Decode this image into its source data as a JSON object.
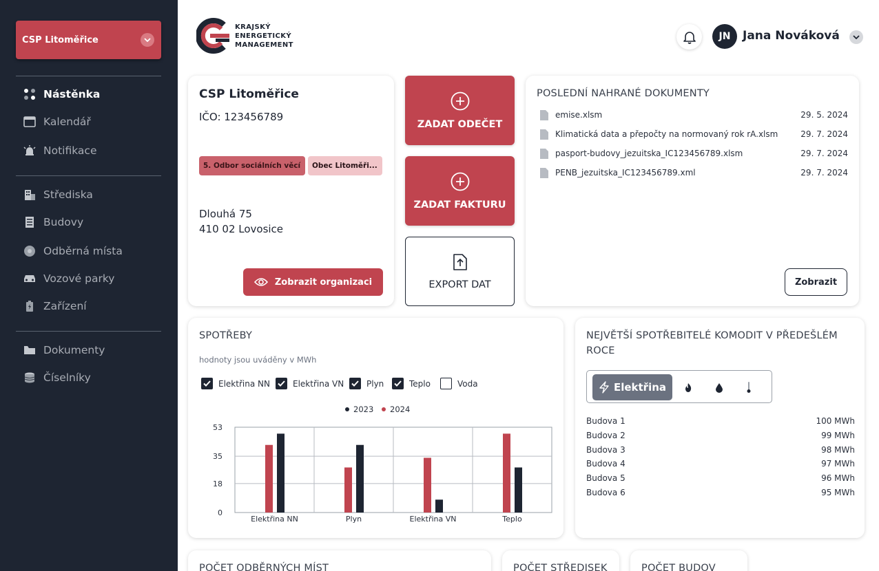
{
  "sidebar": {
    "org_selector": "CSP Litoměřice",
    "items": [
      {
        "label": "Nástěnka"
      },
      {
        "label": "Kalendář"
      },
      {
        "label": "Notifikace"
      },
      {
        "label": "Střediska"
      },
      {
        "label": "Budovy"
      },
      {
        "label": "Odběrná místa"
      },
      {
        "label": "Vozové parky"
      },
      {
        "label": "Zařízení"
      },
      {
        "label": "Dokumenty"
      },
      {
        "label": "Číselníky"
      }
    ]
  },
  "header": {
    "logo_lines": [
      "KRAJSKÝ",
      "ENERGETICKÝ",
      "MANAGEMENT"
    ],
    "avatar_initials": "JN",
    "user_name": "Jana Nováková"
  },
  "org_card": {
    "name": "CSP Litoměřice",
    "ico": "IČO: 123456789",
    "tags": [
      "5. Odbor sociálních věcí",
      "Obec Litoměři..."
    ],
    "address_line1": "Dlouhá 75",
    "address_line2": "410 02 Lovosice",
    "button_label": "Zobrazit organizaci"
  },
  "actions": {
    "reading": "ZADAT ODEČET",
    "invoice": "ZADAT FAKTURU",
    "export": "EXPORT DAT"
  },
  "documents": {
    "title": "POSLEDNÍ NAHRANÉ DOKUMENTY",
    "items": [
      {
        "name": "emise.xlsm",
        "date": "29. 5. 2024"
      },
      {
        "name": "Klimatická data a přepočty na normovaný rok rA.xlsm",
        "date": "29. 7. 2024"
      },
      {
        "name": "pasport-budovy_jezuitska_IC123456789.xlsm",
        "date": "29. 7. 2024"
      },
      {
        "name": "PENB_jezuitska_IC123456789.xml",
        "date": "29. 7. 2024"
      }
    ],
    "button_label": "Zobrazit"
  },
  "consumption": {
    "title": "SPOTŘEBY",
    "subtitle": "hodnoty jsou uváděny v MWh",
    "filters": [
      {
        "label": "Elektřina NN",
        "checked": true
      },
      {
        "label": "Elektřina VN",
        "checked": true
      },
      {
        "label": "Plyn",
        "checked": true
      },
      {
        "label": "Teplo",
        "checked": true
      },
      {
        "label": "Voda",
        "checked": false
      }
    ]
  },
  "chart_data": {
    "type": "bar",
    "categories": [
      "Elektřina  NN",
      "Plyn",
      "Elektřina VN",
      "Teplo"
    ],
    "series": [
      {
        "name": "2023",
        "color": "#1e2532",
        "values": [
          49,
          42,
          8,
          28
        ]
      },
      {
        "name": "2024",
        "color": "#c0444f",
        "values": [
          42,
          28,
          34,
          49
        ]
      }
    ],
    "yticks": [
      "0",
      "18",
      "35",
      "53"
    ],
    "ylim": [
      0,
      53
    ],
    "legend": "top-center",
    "grid": true
  },
  "top_consumers": {
    "title_line1": "NEJVĚTŠÍ SPOTŘEBITELÉ KOMODIT V PŘEDEŠLÉM",
    "title_line2": "ROCE",
    "active_tab": "Elektřina",
    "tab_icons": [
      "bolt-icon",
      "flame-icon",
      "water-drop-icon",
      "thermometer-icon"
    ],
    "rows": [
      {
        "name": "Budova 1",
        "value": "100 MWh"
      },
      {
        "name": "Budova 2",
        "value": "99 MWh"
      },
      {
        "name": "Budova 3",
        "value": "98 MWh"
      },
      {
        "name": "Budova 4",
        "value": "97 MWh"
      },
      {
        "name": "Budova 5",
        "value": "96 MWh"
      },
      {
        "name": "Budova 6",
        "value": "95 MWh"
      }
    ]
  },
  "bottom_cards": {
    "consumption_points": "POČET ODBĚRNÝCH MÍST",
    "centers": "POČET STŘEDISEK",
    "buildings": "POČET BUDOV"
  },
  "colors": {
    "sidebar_bg": "#1e2532",
    "accent": "#c0444f"
  }
}
